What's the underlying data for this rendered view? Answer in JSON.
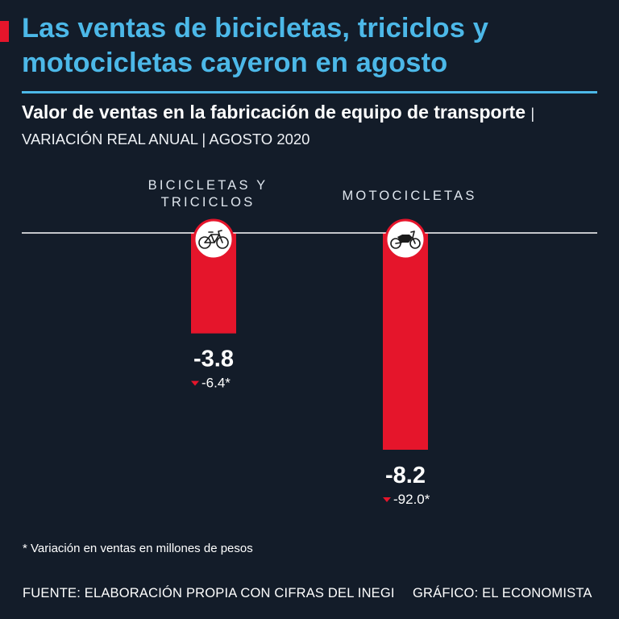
{
  "title": "Las ventas de bicicletas, triciclos y motocicletas cayeron en agosto",
  "subtitle_main": "Valor de ventas en la fabricación de equipo de transporte",
  "subtitle_meta": "| VARIACIÓN REAL ANUAL | AGOSTO 2020",
  "footnote": "* Variación en ventas en millones de pesos",
  "source": "FUENTE: ELABORACIÓN PROPIA CON CIFRAS DEL INEGI",
  "credit": "GRÁFICO: EL ECONOMISTA",
  "colors": {
    "bar": "#e5152b",
    "title": "#4cb8e8",
    "background": "#131c29",
    "axis": "#ffffff"
  },
  "chart_data": {
    "type": "bar",
    "title": "Valor de ventas en la fabricación de equipo de transporte",
    "categories": [
      "BICICLETAS Y TRICICLOS",
      "MOTOCICLETAS"
    ],
    "category_lines": [
      [
        "BICICLETAS Y",
        "TRICICLOS"
      ],
      [
        "MOTOCICLETAS"
      ]
    ],
    "icons": [
      "bicycle-icon",
      "motorcycle-icon"
    ],
    "values": [
      -3.8,
      -8.2
    ],
    "value_labels": [
      "-3.8",
      "-8.2"
    ],
    "secondary_values": [
      -6.4,
      -92.0
    ],
    "secondary_labels": [
      "-6.4*",
      "-92.0*"
    ],
    "unit": "% variación real anual",
    "ylim": [
      -9,
      0
    ],
    "grid": false,
    "legend": "none"
  }
}
